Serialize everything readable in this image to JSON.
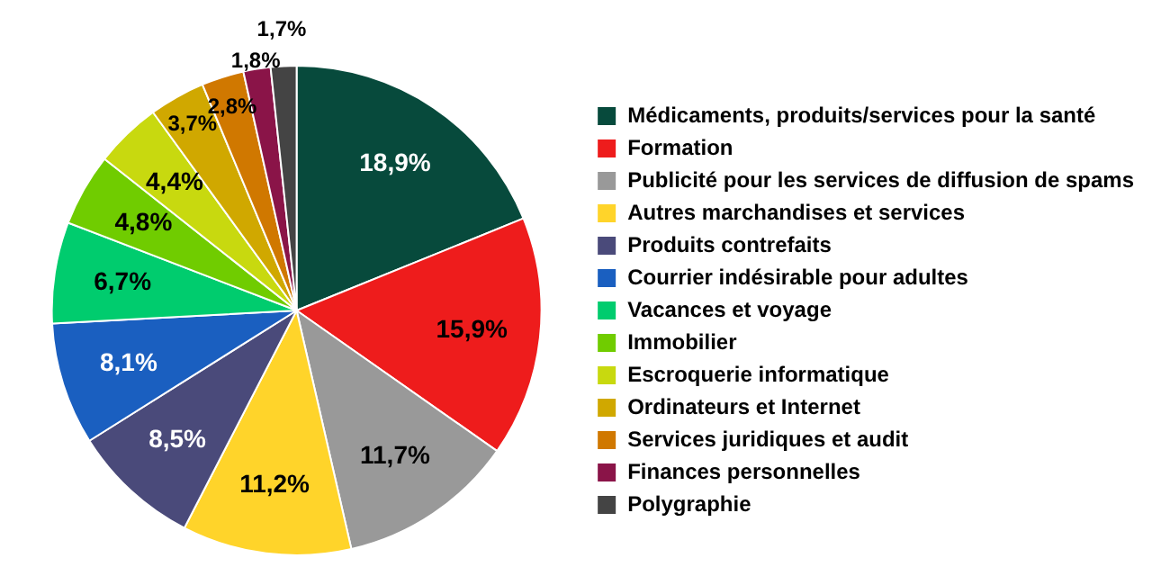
{
  "chart_data": {
    "type": "pie",
    "categories": [
      "Médicaments, produits/services pour la santé",
      "Formation",
      "Publicité pour les services de diffusion de spams",
      "Autres marchandises et services",
      "Produits contrefaits",
      "Courrier indésirable pour adultes",
      "Vacances et voyage",
      "Immobilier",
      "Escroquerie informatique",
      "Ordinateurs et Internet",
      "Services juridiques et audit",
      "Finances personnelles",
      "Polygraphie"
    ],
    "values": [
      18.9,
      15.9,
      11.7,
      11.2,
      8.5,
      8.1,
      6.7,
      4.8,
      4.4,
      3.7,
      2.8,
      1.8,
      1.7
    ],
    "value_labels": [
      "18,9%",
      "15,9%",
      "11,7%",
      "11,2%",
      "8,5%",
      "8,1%",
      "6,7%",
      "4,8%",
      "4,4%",
      "3,7%",
      "2,8%",
      "1,8%",
      "1,7%"
    ],
    "colors": [
      "#074a3c",
      "#ee1c1c",
      "#999999",
      "#ffd42a",
      "#4a4a7a",
      "#1a5fc0",
      "#00cc6e",
      "#70cc00",
      "#c8d90f",
      "#d0a800",
      "#d07800",
      "#8a1448",
      "#444444"
    ],
    "legend": "right"
  }
}
